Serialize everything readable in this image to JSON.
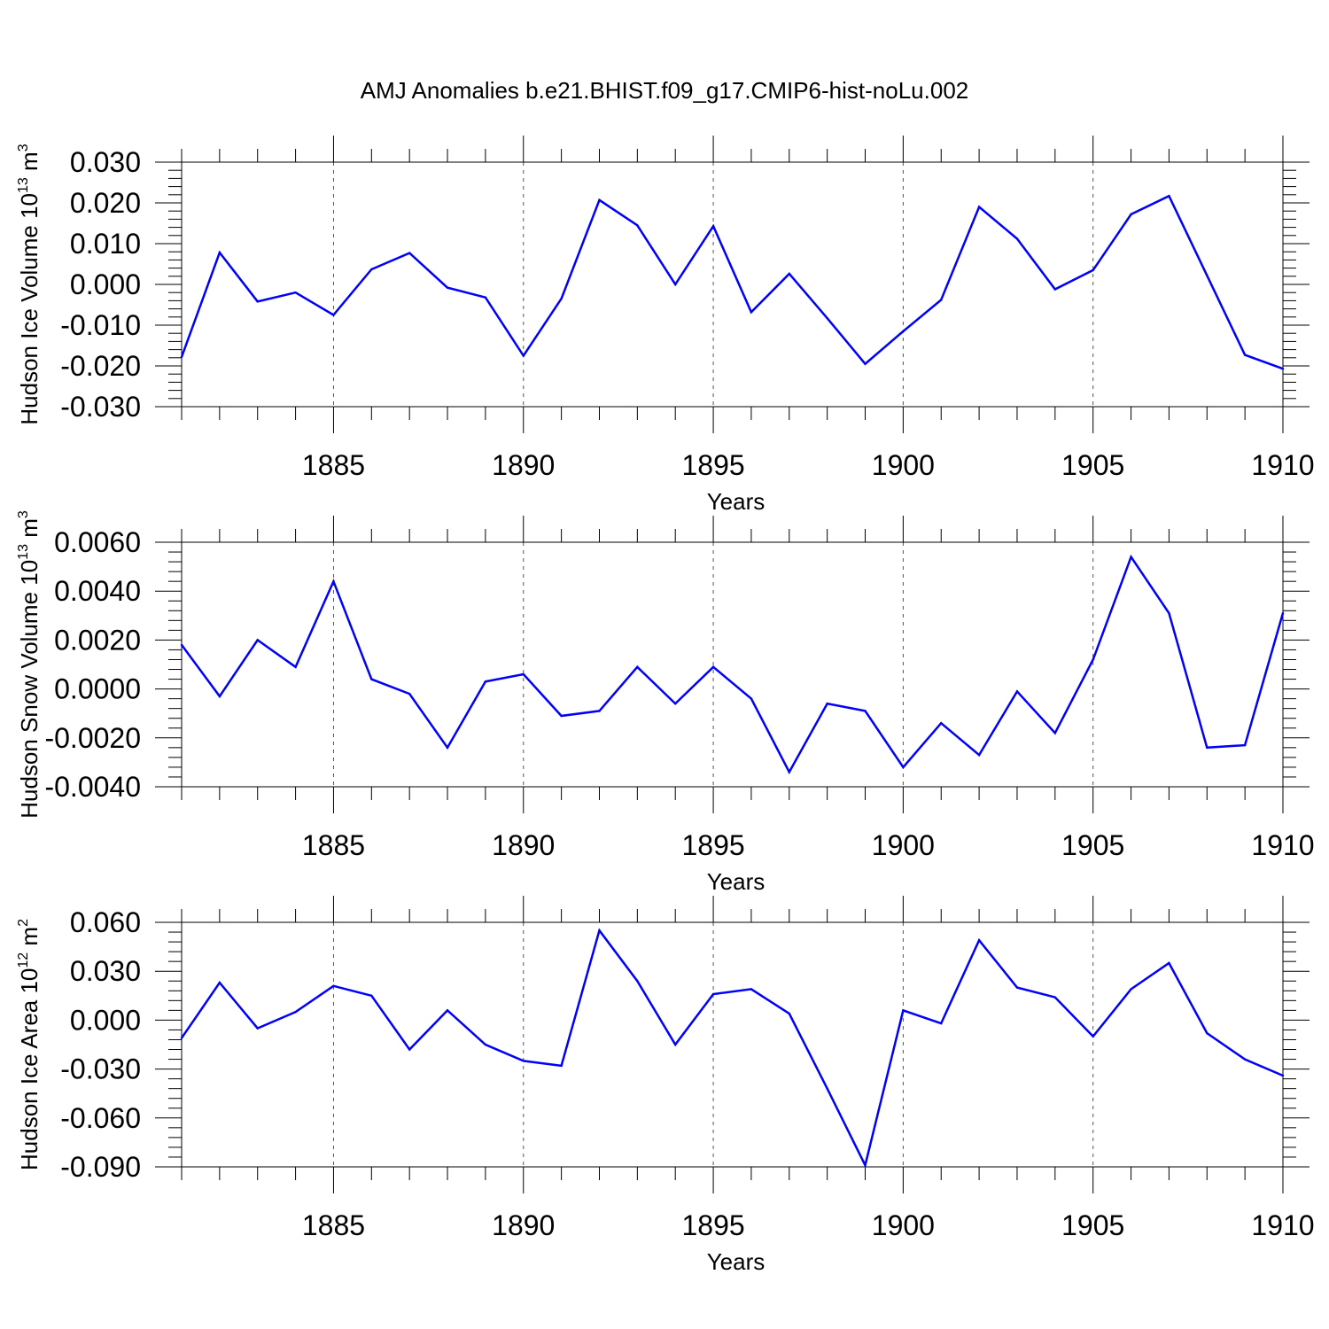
{
  "figure_title": "AMJ Anomalies b.e21.BHIST.f09_g17.CMIP6-hist-noLu.002",
  "colors": {
    "line": "#0000ff",
    "axes": "#000000",
    "grid": "#555555",
    "background": "#ffffff"
  },
  "chart_data": [
    {
      "type": "line",
      "xlabel": "Years",
      "ylabel": {
        "text": "Hudson Ice Volume 10",
        "sup": "13",
        "unit": " m",
        "unit_sup": "3"
      },
      "xlim": [
        1881,
        1910
      ],
      "ylim": [
        -0.03,
        0.03
      ],
      "x_ticks": [
        "1885",
        "1890",
        "1895",
        "1900",
        "1905",
        "1910"
      ],
      "y_ticks": [
        "0.030",
        "0.020",
        "0.010",
        "0.000",
        "-0.010",
        "-0.020",
        "-0.030"
      ],
      "grid": "vertical dashed at major x ticks",
      "series": [
        {
          "x": [
            1881,
            1882,
            1883,
            1884,
            1885,
            1886,
            1887,
            1888,
            1889,
            1890,
            1891,
            1892,
            1893,
            1894,
            1895,
            1896,
            1897,
            1898,
            1899,
            1900,
            1901,
            1902,
            1903,
            1904,
            1905,
            1906,
            1907,
            1908,
            1909,
            1910
          ],
          "values": [
            -0.0178,
            0.0078,
            -0.0042,
            -0.002,
            -0.0075,
            0.0037,
            0.0077,
            -0.0008,
            -0.0032,
            -0.0175,
            -0.0035,
            0.0207,
            0.0145,
            0.0,
            0.0143,
            -0.0068,
            0.0026,
            -0.0083,
            -0.0195,
            -0.0115,
            -0.0038,
            0.019,
            0.0112,
            -0.0012,
            0.0035,
            0.0172,
            0.0217,
            0.0022,
            -0.0173,
            -0.0207
          ]
        }
      ]
    },
    {
      "type": "line",
      "xlabel": "Years",
      "ylabel": {
        "text": "Hudson Snow Volume 10",
        "sup": "13",
        "unit": " m",
        "unit_sup": "3"
      },
      "xlim": [
        1881,
        1910
      ],
      "ylim": [
        -0.004,
        0.006
      ],
      "x_ticks": [
        "1885",
        "1890",
        "1895",
        "1900",
        "1905",
        "1910"
      ],
      "y_ticks": [
        "0.0060",
        "0.0040",
        "0.0020",
        "0.0000",
        "-0.0020",
        "-0.0040"
      ],
      "grid": "vertical dashed at major x ticks",
      "series": [
        {
          "x": [
            1881,
            1882,
            1883,
            1884,
            1885,
            1886,
            1887,
            1888,
            1889,
            1890,
            1891,
            1892,
            1893,
            1894,
            1895,
            1896,
            1897,
            1898,
            1899,
            1900,
            1901,
            1902,
            1903,
            1904,
            1905,
            1906,
            1907,
            1908,
            1909,
            1910
          ],
          "values": [
            0.0018,
            -0.0003,
            0.002,
            0.0009,
            0.0044,
            0.0004,
            -0.0002,
            -0.0024,
            0.0003,
            0.0006,
            -0.0011,
            -0.0009,
            0.0009,
            -0.0006,
            0.0009,
            -0.0004,
            -0.0034,
            -0.0006,
            -0.0009,
            -0.0032,
            -0.0014,
            -0.0027,
            -0.0001,
            -0.0018,
            0.0012,
            0.0054,
            0.0031,
            -0.0024,
            -0.0023,
            0.0031
          ]
        }
      ]
    },
    {
      "type": "line",
      "xlabel": "Years",
      "ylabel": {
        "text": "Hudson Ice Area 10",
        "sup": "12",
        "unit": " m",
        "unit_sup": "2"
      },
      "xlim": [
        1881,
        1910
      ],
      "ylim": [
        -0.09,
        0.06
      ],
      "x_ticks": [
        "1885",
        "1890",
        "1895",
        "1900",
        "1905",
        "1910"
      ],
      "y_ticks": [
        "0.060",
        "0.030",
        "0.000",
        "-0.030",
        "-0.060",
        "-0.090"
      ],
      "grid": "vertical dashed at major x ticks",
      "series": [
        {
          "x": [
            1881,
            1882,
            1883,
            1884,
            1885,
            1886,
            1887,
            1888,
            1889,
            1890,
            1891,
            1892,
            1893,
            1894,
            1895,
            1896,
            1897,
            1898,
            1899,
            1900,
            1901,
            1902,
            1903,
            1904,
            1905,
            1906,
            1907,
            1908,
            1909,
            1910
          ],
          "values": [
            -0.011,
            0.023,
            -0.005,
            0.005,
            0.021,
            0.015,
            -0.018,
            0.006,
            -0.015,
            -0.025,
            -0.028,
            0.055,
            0.024,
            -0.015,
            0.016,
            0.019,
            0.004,
            -0.042,
            -0.089,
            0.006,
            -0.002,
            0.049,
            0.02,
            0.014,
            -0.01,
            0.019,
            0.035,
            -0.008,
            -0.024,
            -0.034
          ]
        }
      ]
    }
  ]
}
